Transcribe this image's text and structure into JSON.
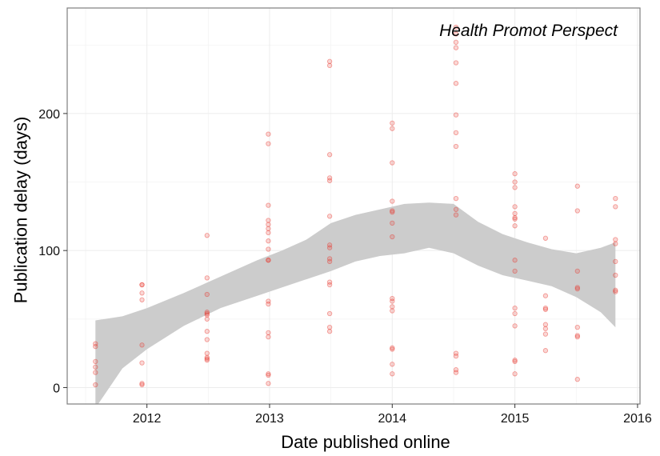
{
  "chart_data": {
    "type": "scatter",
    "title": "",
    "annotation": "Health Promot Perspect",
    "xlabel": "Date published online",
    "ylabel": "Publication delay (days)",
    "xlim": [
      2011.35,
      2016.02
    ],
    "ylim": [
      -12,
      277
    ],
    "x_ticks": [
      2012,
      2013,
      2014,
      2015,
      2016
    ],
    "x_tick_labels": [
      "2012",
      "2013",
      "2014",
      "2015",
      "2016"
    ],
    "y_ticks": [
      0,
      100,
      200
    ],
    "y_tick_labels": [
      "0",
      "100",
      "200"
    ],
    "grid": true,
    "colors": {
      "point": "#e8382f",
      "band": "#cccccc",
      "grid": "#ececec",
      "frame": "#7f7f7f"
    },
    "points": [
      {
        "x": 2011.58,
        "y": 32
      },
      {
        "x": 2011.58,
        "y": 30
      },
      {
        "x": 2011.58,
        "y": 19
      },
      {
        "x": 2011.58,
        "y": 15
      },
      {
        "x": 2011.58,
        "y": 11
      },
      {
        "x": 2011.58,
        "y": 2
      },
      {
        "x": 2011.96,
        "y": 75
      },
      {
        "x": 2011.96,
        "y": 75
      },
      {
        "x": 2011.96,
        "y": 69
      },
      {
        "x": 2011.96,
        "y": 64
      },
      {
        "x": 2011.96,
        "y": 31
      },
      {
        "x": 2011.96,
        "y": 18
      },
      {
        "x": 2011.96,
        "y": 3
      },
      {
        "x": 2011.96,
        "y": 2
      },
      {
        "x": 2012.49,
        "y": 111
      },
      {
        "x": 2012.49,
        "y": 80
      },
      {
        "x": 2012.49,
        "y": 68
      },
      {
        "x": 2012.49,
        "y": 55
      },
      {
        "x": 2012.49,
        "y": 54
      },
      {
        "x": 2012.49,
        "y": 53
      },
      {
        "x": 2012.49,
        "y": 50
      },
      {
        "x": 2012.49,
        "y": 41
      },
      {
        "x": 2012.49,
        "y": 35
      },
      {
        "x": 2012.49,
        "y": 25
      },
      {
        "x": 2012.49,
        "y": 22
      },
      {
        "x": 2012.49,
        "y": 21
      },
      {
        "x": 2012.49,
        "y": 20
      },
      {
        "x": 2012.99,
        "y": 185
      },
      {
        "x": 2012.99,
        "y": 178
      },
      {
        "x": 2012.99,
        "y": 133
      },
      {
        "x": 2012.99,
        "y": 122
      },
      {
        "x": 2012.99,
        "y": 119
      },
      {
        "x": 2012.99,
        "y": 116
      },
      {
        "x": 2012.99,
        "y": 113
      },
      {
        "x": 2012.99,
        "y": 107
      },
      {
        "x": 2012.99,
        "y": 101
      },
      {
        "x": 2012.99,
        "y": 93
      },
      {
        "x": 2012.99,
        "y": 93
      },
      {
        "x": 2012.99,
        "y": 63
      },
      {
        "x": 2012.99,
        "y": 61
      },
      {
        "x": 2012.99,
        "y": 40
      },
      {
        "x": 2012.99,
        "y": 37
      },
      {
        "x": 2012.99,
        "y": 10
      },
      {
        "x": 2012.99,
        "y": 9
      },
      {
        "x": 2012.99,
        "y": 3
      },
      {
        "x": 2013.49,
        "y": 238
      },
      {
        "x": 2013.49,
        "y": 235
      },
      {
        "x": 2013.49,
        "y": 170
      },
      {
        "x": 2013.49,
        "y": 153
      },
      {
        "x": 2013.49,
        "y": 151
      },
      {
        "x": 2013.49,
        "y": 125
      },
      {
        "x": 2013.49,
        "y": 104
      },
      {
        "x": 2013.49,
        "y": 102
      },
      {
        "x": 2013.49,
        "y": 94
      },
      {
        "x": 2013.49,
        "y": 92
      },
      {
        "x": 2013.49,
        "y": 77
      },
      {
        "x": 2013.49,
        "y": 75
      },
      {
        "x": 2013.49,
        "y": 54
      },
      {
        "x": 2013.49,
        "y": 44
      },
      {
        "x": 2013.49,
        "y": 41
      },
      {
        "x": 2014.0,
        "y": 193
      },
      {
        "x": 2014.0,
        "y": 189
      },
      {
        "x": 2014.0,
        "y": 164
      },
      {
        "x": 2014.0,
        "y": 136
      },
      {
        "x": 2014.0,
        "y": 129
      },
      {
        "x": 2014.0,
        "y": 128
      },
      {
        "x": 2014.0,
        "y": 120
      },
      {
        "x": 2014.0,
        "y": 110
      },
      {
        "x": 2014.0,
        "y": 65
      },
      {
        "x": 2014.0,
        "y": 63
      },
      {
        "x": 2014.0,
        "y": 59
      },
      {
        "x": 2014.0,
        "y": 56
      },
      {
        "x": 2014.0,
        "y": 29
      },
      {
        "x": 2014.0,
        "y": 28
      },
      {
        "x": 2014.0,
        "y": 17
      },
      {
        "x": 2014.0,
        "y": 10
      },
      {
        "x": 2014.52,
        "y": 263
      },
      {
        "x": 2014.52,
        "y": 258
      },
      {
        "x": 2014.52,
        "y": 252
      },
      {
        "x": 2014.52,
        "y": 248
      },
      {
        "x": 2014.52,
        "y": 237
      },
      {
        "x": 2014.52,
        "y": 222
      },
      {
        "x": 2014.52,
        "y": 199
      },
      {
        "x": 2014.52,
        "y": 186
      },
      {
        "x": 2014.52,
        "y": 176
      },
      {
        "x": 2014.52,
        "y": 138
      },
      {
        "x": 2014.52,
        "y": 130
      },
      {
        "x": 2014.52,
        "y": 126
      },
      {
        "x": 2014.52,
        "y": 25
      },
      {
        "x": 2014.52,
        "y": 23
      },
      {
        "x": 2014.52,
        "y": 13
      },
      {
        "x": 2014.52,
        "y": 11
      },
      {
        "x": 2015.0,
        "y": 156
      },
      {
        "x": 2015.0,
        "y": 150
      },
      {
        "x": 2015.0,
        "y": 146
      },
      {
        "x": 2015.0,
        "y": 132
      },
      {
        "x": 2015.0,
        "y": 127
      },
      {
        "x": 2015.0,
        "y": 124
      },
      {
        "x": 2015.0,
        "y": 123
      },
      {
        "x": 2015.0,
        "y": 118
      },
      {
        "x": 2015.0,
        "y": 93
      },
      {
        "x": 2015.0,
        "y": 85
      },
      {
        "x": 2015.0,
        "y": 58
      },
      {
        "x": 2015.0,
        "y": 54
      },
      {
        "x": 2015.0,
        "y": 45
      },
      {
        "x": 2015.0,
        "y": 20
      },
      {
        "x": 2015.0,
        "y": 19
      },
      {
        "x": 2015.0,
        "y": 10
      },
      {
        "x": 2015.25,
        "y": 109
      },
      {
        "x": 2015.25,
        "y": 67
      },
      {
        "x": 2015.25,
        "y": 58
      },
      {
        "x": 2015.25,
        "y": 57
      },
      {
        "x": 2015.25,
        "y": 46
      },
      {
        "x": 2015.25,
        "y": 43
      },
      {
        "x": 2015.25,
        "y": 39
      },
      {
        "x": 2015.25,
        "y": 27
      },
      {
        "x": 2015.51,
        "y": 147
      },
      {
        "x": 2015.51,
        "y": 129
      },
      {
        "x": 2015.51,
        "y": 85
      },
      {
        "x": 2015.51,
        "y": 73
      },
      {
        "x": 2015.51,
        "y": 72
      },
      {
        "x": 2015.51,
        "y": 44
      },
      {
        "x": 2015.51,
        "y": 38
      },
      {
        "x": 2015.51,
        "y": 37
      },
      {
        "x": 2015.51,
        "y": 6
      },
      {
        "x": 2015.82,
        "y": 138
      },
      {
        "x": 2015.82,
        "y": 132
      },
      {
        "x": 2015.82,
        "y": 108
      },
      {
        "x": 2015.82,
        "y": 105
      },
      {
        "x": 2015.82,
        "y": 92
      },
      {
        "x": 2015.82,
        "y": 82
      },
      {
        "x": 2015.82,
        "y": 71
      },
      {
        "x": 2015.82,
        "y": 70
      }
    ],
    "smooth_band": {
      "x": [
        2011.58,
        2011.8,
        2012.0,
        2012.3,
        2012.6,
        2012.9,
        2013.1,
        2013.3,
        2013.5,
        2013.7,
        2013.9,
        2014.1,
        2014.3,
        2014.5,
        2014.7,
        2014.9,
        2015.1,
        2015.3,
        2015.5,
        2015.7,
        2015.82
      ],
      "upper": [
        49,
        52,
        58,
        69,
        81,
        93,
        100,
        108,
        120,
        126,
        130,
        134,
        135,
        134,
        121,
        112,
        106,
        101,
        98,
        102,
        106
      ],
      "lower": [
        -15,
        14,
        28,
        45,
        58,
        67,
        73,
        79,
        85,
        92,
        96,
        98,
        102,
        98,
        89,
        82,
        78,
        74,
        66,
        55,
        44
      ]
    }
  }
}
